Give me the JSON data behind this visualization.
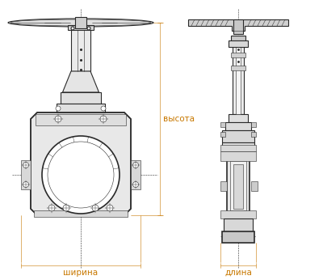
{
  "bg_color": "#ffffff",
  "line_color": "#2a2a2a",
  "dim_color": "#c87800",
  "label_shirna": "ширина",
  "label_dlina": "длина",
  "label_vysota": "высота",
  "label_fontsize": 7.5,
  "fig_width": 4.0,
  "fig_height": 3.46,
  "dpi": 100,
  "lw_main": 0.8,
  "lw_thin": 0.4,
  "lw_thick": 1.2
}
